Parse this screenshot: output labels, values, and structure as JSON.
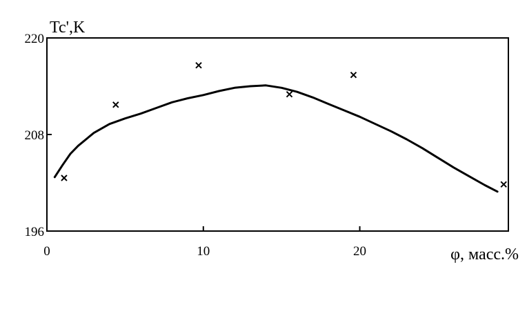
{
  "chart_data": {
    "type": "scatter",
    "ylabel": "Tc',K",
    "xlabel": "φ, масс.%",
    "xlim": [
      0,
      29.5
    ],
    "ylim": [
      196,
      220
    ],
    "x_ticks": [
      0,
      10,
      20
    ],
    "x_tick_labels": [
      "0",
      "10",
      "20"
    ],
    "y_ticks": [
      196,
      208,
      220
    ],
    "y_tick_labels": [
      "196",
      "208",
      "220"
    ],
    "grid": false,
    "series": [
      {
        "kind": "points",
        "marker": "x",
        "x": [
          1.1,
          4.4,
          9.7,
          15.5,
          19.6,
          29.2
        ],
        "y": [
          202.6,
          211.7,
          216.6,
          213.0,
          215.4,
          201.8
        ]
      },
      {
        "kind": "line",
        "x": [
          0.5,
          1.0,
          1.5,
          2.0,
          3.0,
          4.0,
          5.0,
          6.0,
          7.0,
          8.0,
          9.0,
          10.0,
          11.0,
          12.0,
          13.0,
          14.0,
          15.0,
          16.0,
          17.0,
          18.0,
          19.0,
          20.0,
          21.0,
          22.0,
          23.0,
          24.0,
          25.0,
          26.0,
          27.0,
          28.0,
          28.8
        ],
        "y": [
          202.7,
          204.2,
          205.6,
          206.6,
          208.2,
          209.3,
          210.0,
          210.6,
          211.3,
          212.0,
          212.5,
          212.9,
          213.4,
          213.8,
          214.0,
          214.1,
          213.8,
          213.3,
          212.6,
          211.8,
          211.0,
          210.2,
          209.3,
          208.4,
          207.4,
          206.3,
          205.1,
          203.9,
          202.8,
          201.7,
          200.9
        ]
      }
    ]
  }
}
